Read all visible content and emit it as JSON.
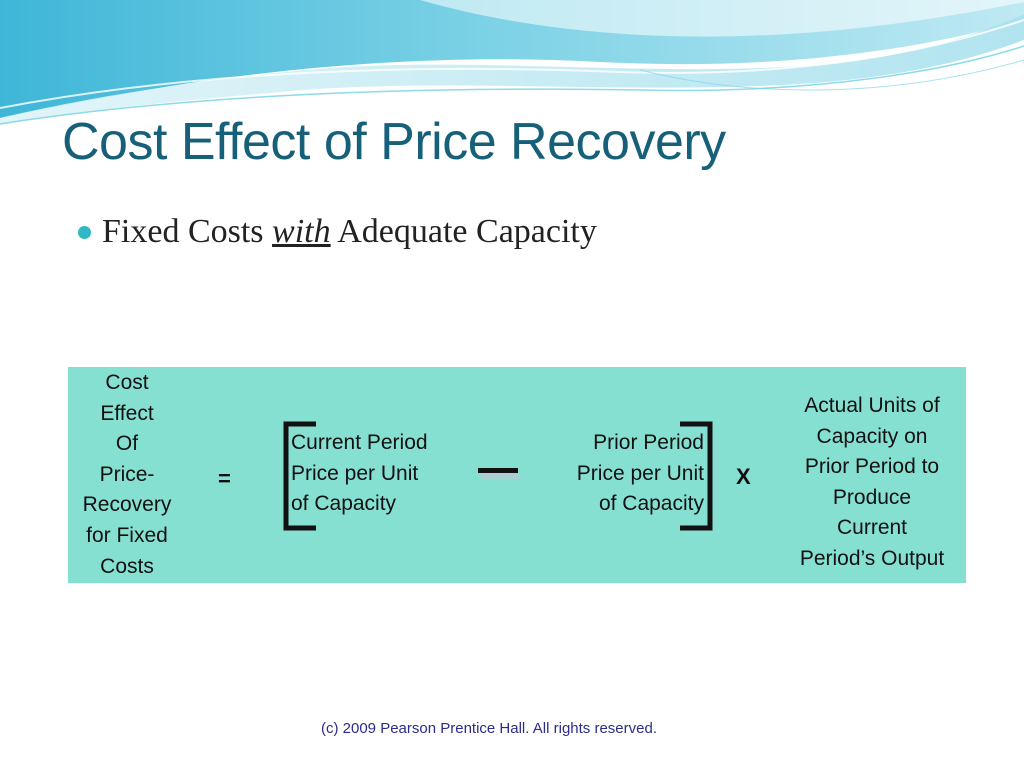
{
  "title": "Cost Effect of Price Recovery",
  "bullet": {
    "before": "Fixed Costs ",
    "emphasis": "with",
    "after": " Adequate Capacity"
  },
  "formula": {
    "lhs_lines": [
      "Cost",
      "Effect",
      "Of",
      "Price-",
      "Recovery",
      "for Fixed",
      "Costs"
    ],
    "equals": "=",
    "current_lines": [
      "Current Period",
      "Price per Unit",
      "of Capacity"
    ],
    "prior_lines": [
      "Prior Period",
      "Price per Unit",
      "of Capacity"
    ],
    "times": "X",
    "actual_lines": [
      "Actual Units of",
      "Capacity on",
      "Prior Period to",
      "Produce",
      "Current",
      "Period’s Output"
    ]
  },
  "footer": "(c) 2009 Pearson Prentice Hall. All rights reserved.",
  "colors": {
    "title": "#17607a",
    "formula_background": "#86e0d2",
    "bullet": "#2fb8c4",
    "wave_dark": "#4ec3dc",
    "wave_light": "#bfeaf2"
  }
}
